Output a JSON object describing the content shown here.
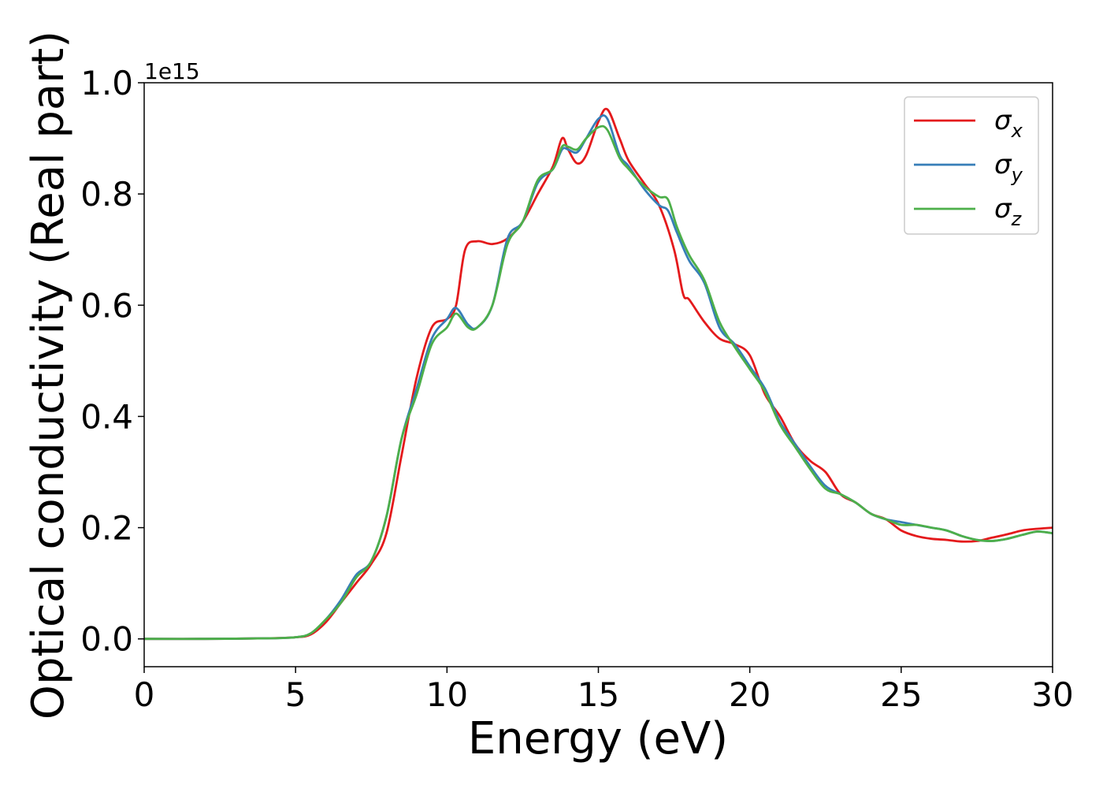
{
  "chart_data": {
    "type": "line",
    "title": "",
    "xlabel": "Energy (eV)",
    "ylabel": "Optical conductivity (Real part)",
    "offset_text": "1e15",
    "xlim": [
      0,
      30
    ],
    "ylim": [
      -0.05,
      1.0
    ],
    "x_ticks": [
      0,
      5,
      10,
      15,
      20,
      25,
      30
    ],
    "x_tick_labels": [
      "0",
      "5",
      "10",
      "15",
      "20",
      "25",
      "30"
    ],
    "y_ticks": [
      0.0,
      0.2,
      0.4,
      0.6,
      0.8,
      1.0
    ],
    "y_tick_labels": [
      "0.0",
      "0.2",
      "0.4",
      "0.6",
      "0.8",
      "1.0"
    ],
    "grid": false,
    "legend_position": "top-right",
    "series": [
      {
        "name": "σx",
        "symbol": "σ",
        "subscript": "x",
        "color": "#e41a1c",
        "points": [
          [
            0,
            0
          ],
          [
            2,
            0
          ],
          [
            4,
            0.001
          ],
          [
            5,
            0.003
          ],
          [
            5.5,
            0.008
          ],
          [
            6,
            0.03
          ],
          [
            6.5,
            0.065
          ],
          [
            7,
            0.1
          ],
          [
            7.5,
            0.135
          ],
          [
            8,
            0.19
          ],
          [
            8.5,
            0.33
          ],
          [
            9,
            0.47
          ],
          [
            9.5,
            0.56
          ],
          [
            10,
            0.575
          ],
          [
            10.3,
            0.6
          ],
          [
            10.6,
            0.7
          ],
          [
            11,
            0.715
          ],
          [
            11.5,
            0.71
          ],
          [
            12,
            0.72
          ],
          [
            12.5,
            0.75
          ],
          [
            13,
            0.8
          ],
          [
            13.5,
            0.85
          ],
          [
            13.8,
            0.9
          ],
          [
            14,
            0.88
          ],
          [
            14.3,
            0.855
          ],
          [
            14.6,
            0.87
          ],
          [
            15,
            0.93
          ],
          [
            15.3,
            0.952
          ],
          [
            15.7,
            0.9
          ],
          [
            16,
            0.86
          ],
          [
            16.5,
            0.82
          ],
          [
            17,
            0.78
          ],
          [
            17.5,
            0.7
          ],
          [
            17.8,
            0.62
          ],
          [
            18,
            0.61
          ],
          [
            18.5,
            0.57
          ],
          [
            19,
            0.54
          ],
          [
            19.5,
            0.53
          ],
          [
            20,
            0.51
          ],
          [
            20.5,
            0.44
          ],
          [
            21,
            0.4
          ],
          [
            21.5,
            0.35
          ],
          [
            22,
            0.32
          ],
          [
            22.5,
            0.3
          ],
          [
            23,
            0.26
          ],
          [
            23.5,
            0.245
          ],
          [
            24,
            0.225
          ],
          [
            24.5,
            0.215
          ],
          [
            25,
            0.195
          ],
          [
            25.5,
            0.185
          ],
          [
            26,
            0.18
          ],
          [
            26.5,
            0.178
          ],
          [
            27,
            0.175
          ],
          [
            27.5,
            0.176
          ],
          [
            28,
            0.182
          ],
          [
            28.5,
            0.188
          ],
          [
            29,
            0.195
          ],
          [
            29.5,
            0.198
          ],
          [
            30,
            0.2
          ]
        ]
      },
      {
        "name": "σy",
        "symbol": "σ",
        "subscript": "y",
        "color": "#377eb8",
        "points": [
          [
            0,
            0
          ],
          [
            2,
            0
          ],
          [
            4,
            0.001
          ],
          [
            5,
            0.003
          ],
          [
            5.5,
            0.01
          ],
          [
            6,
            0.035
          ],
          [
            6.5,
            0.07
          ],
          [
            7,
            0.115
          ],
          [
            7.5,
            0.14
          ],
          [
            8,
            0.22
          ],
          [
            8.5,
            0.36
          ],
          [
            9,
            0.45
          ],
          [
            9.5,
            0.54
          ],
          [
            10,
            0.575
          ],
          [
            10.3,
            0.595
          ],
          [
            10.7,
            0.565
          ],
          [
            11,
            0.56
          ],
          [
            11.5,
            0.6
          ],
          [
            12,
            0.72
          ],
          [
            12.5,
            0.75
          ],
          [
            13,
            0.82
          ],
          [
            13.5,
            0.845
          ],
          [
            13.8,
            0.88
          ],
          [
            14,
            0.88
          ],
          [
            14.3,
            0.875
          ],
          [
            14.6,
            0.9
          ],
          [
            15,
            0.935
          ],
          [
            15.3,
            0.935
          ],
          [
            15.7,
            0.87
          ],
          [
            16,
            0.85
          ],
          [
            16.5,
            0.81
          ],
          [
            17,
            0.78
          ],
          [
            17.3,
            0.77
          ],
          [
            17.6,
            0.73
          ],
          [
            18,
            0.68
          ],
          [
            18.5,
            0.64
          ],
          [
            19,
            0.56
          ],
          [
            19.5,
            0.53
          ],
          [
            20,
            0.49
          ],
          [
            20.5,
            0.45
          ],
          [
            21,
            0.39
          ],
          [
            21.5,
            0.35
          ],
          [
            22,
            0.31
          ],
          [
            22.5,
            0.275
          ],
          [
            23,
            0.26
          ],
          [
            23.5,
            0.245
          ],
          [
            24,
            0.225
          ],
          [
            24.5,
            0.215
          ],
          [
            25,
            0.21
          ],
          [
            25.5,
            0.205
          ],
          [
            26,
            0.2
          ],
          [
            26.5,
            0.195
          ],
          [
            27,
            0.185
          ],
          [
            27.5,
            0.178
          ],
          [
            28,
            0.176
          ],
          [
            28.5,
            0.18
          ],
          [
            29,
            0.187
          ],
          [
            29.5,
            0.193
          ],
          [
            30,
            0.19
          ]
        ]
      },
      {
        "name": "σz",
        "symbol": "σ",
        "subscript": "z",
        "color": "#4daf4a",
        "points": [
          [
            0,
            0
          ],
          [
            2,
            0
          ],
          [
            4,
            0.001
          ],
          [
            5,
            0.003
          ],
          [
            5.5,
            0.01
          ],
          [
            6,
            0.035
          ],
          [
            6.5,
            0.065
          ],
          [
            7,
            0.11
          ],
          [
            7.5,
            0.14
          ],
          [
            8,
            0.22
          ],
          [
            8.5,
            0.36
          ],
          [
            9,
            0.44
          ],
          [
            9.5,
            0.53
          ],
          [
            10,
            0.56
          ],
          [
            10.3,
            0.585
          ],
          [
            10.7,
            0.56
          ],
          [
            11,
            0.56
          ],
          [
            11.5,
            0.6
          ],
          [
            12,
            0.71
          ],
          [
            12.5,
            0.75
          ],
          [
            13,
            0.825
          ],
          [
            13.5,
            0.845
          ],
          [
            13.8,
            0.885
          ],
          [
            14,
            0.885
          ],
          [
            14.3,
            0.88
          ],
          [
            14.6,
            0.9
          ],
          [
            15,
            0.92
          ],
          [
            15.3,
            0.915
          ],
          [
            15.7,
            0.865
          ],
          [
            16,
            0.845
          ],
          [
            16.5,
            0.815
          ],
          [
            17,
            0.795
          ],
          [
            17.3,
            0.79
          ],
          [
            17.6,
            0.74
          ],
          [
            18,
            0.69
          ],
          [
            18.5,
            0.645
          ],
          [
            19,
            0.57
          ],
          [
            19.5,
            0.525
          ],
          [
            20,
            0.485
          ],
          [
            20.5,
            0.445
          ],
          [
            21,
            0.385
          ],
          [
            21.5,
            0.345
          ],
          [
            22,
            0.305
          ],
          [
            22.5,
            0.27
          ],
          [
            23,
            0.26
          ],
          [
            23.5,
            0.245
          ],
          [
            24,
            0.225
          ],
          [
            24.5,
            0.215
          ],
          [
            25,
            0.205
          ],
          [
            25.5,
            0.205
          ],
          [
            26,
            0.2
          ],
          [
            26.5,
            0.195
          ],
          [
            27,
            0.185
          ],
          [
            27.5,
            0.178
          ],
          [
            28,
            0.176
          ],
          [
            28.5,
            0.18
          ],
          [
            29,
            0.187
          ],
          [
            29.5,
            0.193
          ],
          [
            30,
            0.19
          ]
        ]
      }
    ]
  }
}
